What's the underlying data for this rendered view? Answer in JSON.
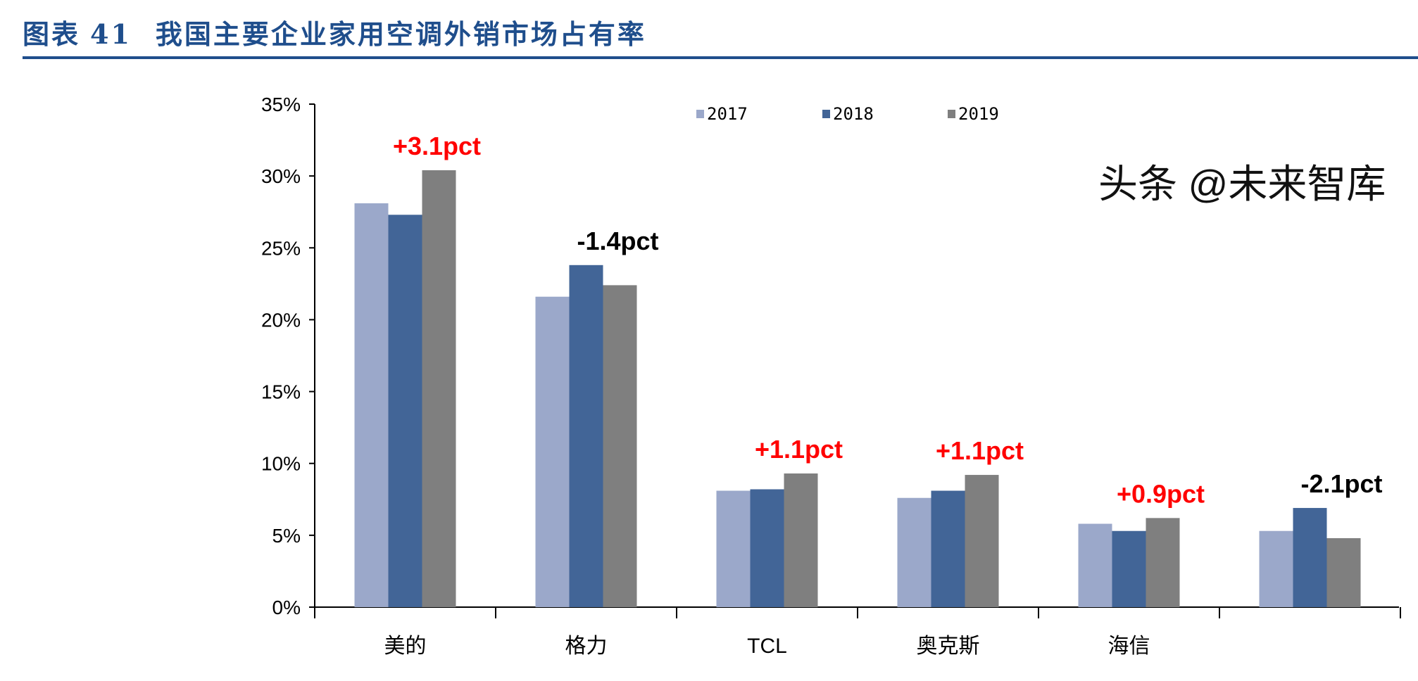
{
  "header": {
    "label": "图表",
    "number": "41",
    "title": "我国主要企业家用空调外销市场占有率"
  },
  "watermark": "头条 @未来智库",
  "chart_data": {
    "type": "bar",
    "categories": [
      "美的",
      "格力",
      "TCL",
      "奥克斯",
      "海信",
      ""
    ],
    "series": [
      {
        "name": "2017",
        "color": "#9ba8ca",
        "values": [
          28.1,
          21.6,
          8.1,
          7.6,
          5.8,
          5.3
        ]
      },
      {
        "name": "2018",
        "color": "#426597",
        "values": [
          27.3,
          23.8,
          8.2,
          8.1,
          5.3,
          6.9
        ]
      },
      {
        "name": "2019",
        "color": "#7f7f7f",
        "values": [
          30.4,
          22.4,
          9.3,
          9.2,
          6.2,
          4.8
        ]
      }
    ],
    "annotations": [
      {
        "text": "+3.1pct",
        "color": "#ff0000"
      },
      {
        "text": "-1.4pct",
        "color": "#000000"
      },
      {
        "text": "+1.1pct",
        "color": "#ff0000"
      },
      {
        "text": "+1.1pct",
        "color": "#ff0000"
      },
      {
        "text": "+0.9pct",
        "color": "#ff0000"
      },
      {
        "text": "-2.1pct",
        "color": "#000000"
      }
    ],
    "yticks": [
      "0%",
      "5%",
      "10%",
      "15%",
      "20%",
      "25%",
      "30%",
      "35%"
    ],
    "ylim": [
      0,
      35
    ],
    "legend_position": "top",
    "grid": false
  }
}
